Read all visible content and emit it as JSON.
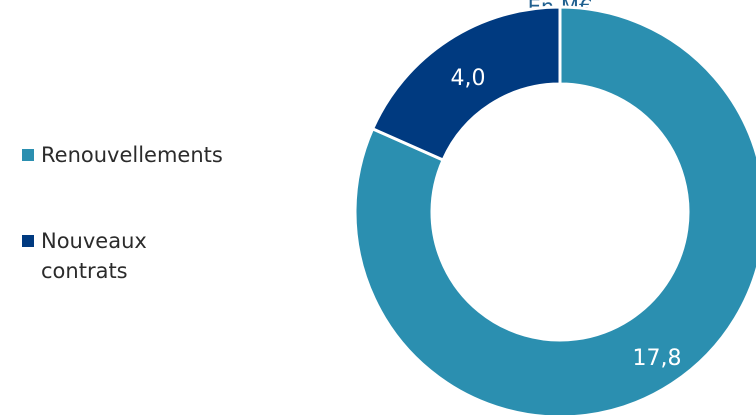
{
  "chart_data": {
    "type": "pie",
    "style": "donut",
    "title": "En M€",
    "categories": [
      "Renouvellements",
      "Nouveaux contrats"
    ],
    "values": [
      17.8,
      4.0
    ],
    "value_labels": [
      "17,8",
      "4,0"
    ],
    "colors": [
      "#2b8fb0",
      "#003a80"
    ],
    "legend": {
      "placement": "left",
      "entries": [
        {
          "lines": [
            "Renouvellements"
          ]
        },
        {
          "lines": [
            "Nouveaux",
            "contrats"
          ]
        }
      ]
    }
  }
}
